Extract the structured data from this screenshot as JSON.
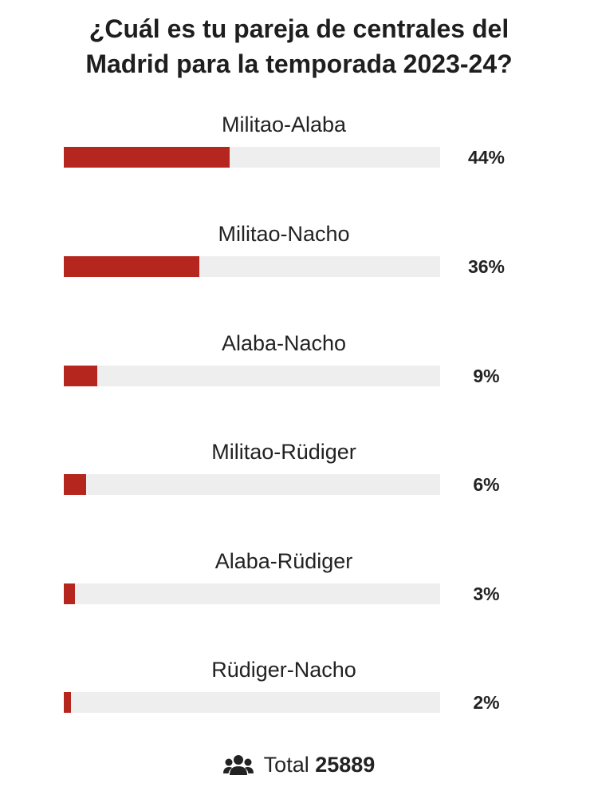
{
  "poll": {
    "title_lines": [
      "¿Cuál es tu pareja de centrales del",
      "Madrid para la temporada 2023-24?"
    ],
    "bar_color": "#b5261e",
    "options": [
      {
        "label": "Militao-Alaba",
        "percent_label": "44%",
        "percent": 44
      },
      {
        "label": "Militao-Nacho",
        "percent_label": "36%",
        "percent": 36
      },
      {
        "label": "Alaba-Nacho",
        "percent_label": "9%",
        "percent": 9
      },
      {
        "label": "Militao-Rüdiger",
        "percent_label": "6%",
        "percent": 6
      },
      {
        "label": "Alaba-Rüdiger",
        "percent_label": "3%",
        "percent": 3
      },
      {
        "label": "Rüdiger-Nacho",
        "percent_label": "2%",
        "percent": 2
      }
    ],
    "total": {
      "icon": "users-icon",
      "label": "Total",
      "value": "25889"
    }
  }
}
